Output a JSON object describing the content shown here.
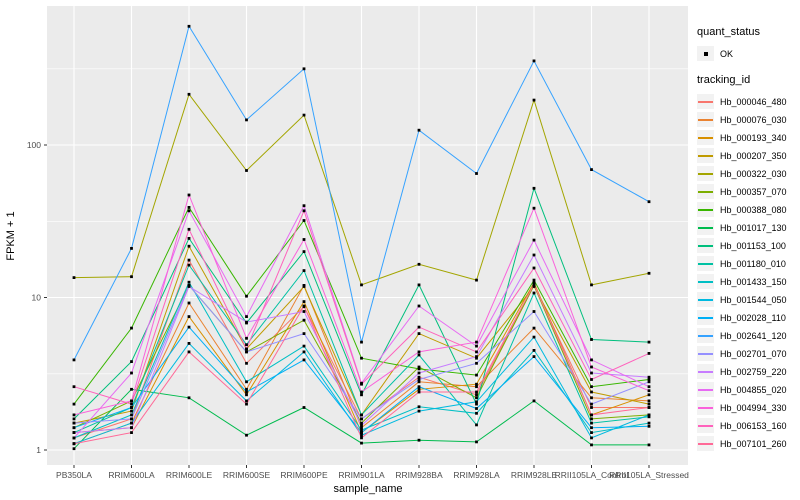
{
  "theme": {
    "panel_bg": "#EBEBEB",
    "grid_color": "#FFFFFF",
    "tick_label_color": "#4D4D4D",
    "axis_tick_color": "#333333",
    "point_color": "#000000",
    "legend_key_bg": "#F2F2F2"
  },
  "legend": {
    "quant_title": "quant_status",
    "ok_label": "OK",
    "tracking_title": "tracking_id"
  },
  "chart_data": {
    "type": "line",
    "title": "",
    "xlabel": "sample_name",
    "ylabel": "FPKM + 1",
    "y_scale": "log10",
    "ylim": [
      1,
      813
    ],
    "y_ticks": [
      1,
      10,
      100
    ],
    "y_minor_ticks": [
      3.162,
      31.62,
      316.2
    ],
    "grid": "on",
    "legend_position": "right",
    "point_marker": "small black square (quant_status OK)",
    "categories": [
      "PB350LA",
      "RRIM600LA",
      "RRIM600LE",
      "RRIM600SE",
      "RRIM600PE",
      "RRIM901LA",
      "RRIM928BA",
      "RRIM928LA",
      "RRIM928LE",
      "RRII105LA_Control",
      "RRII105LA_Stressed"
    ],
    "series": [
      {
        "name": "Hb_000046_480",
        "color": "#F8766D",
        "values": [
          1.2,
          1.6,
          17.6,
          3.7,
          8.7,
          1.6,
          3.0,
          2.3,
          12.0,
          1.9,
          1.9
        ]
      },
      {
        "name": "Hb_000076_030",
        "color": "#EA8331",
        "values": [
          1.1,
          1.5,
          9.2,
          2.5,
          12.0,
          1.4,
          2.8,
          2.6,
          6.3,
          2.2,
          2.1
        ]
      },
      {
        "name": "Hb_000193_340",
        "color": "#D89000",
        "values": [
          1.3,
          1.4,
          7.5,
          2.3,
          9.4,
          1.3,
          2.5,
          2.7,
          12.5,
          1.7,
          2.3
        ]
      },
      {
        "name": "Hb_000207_350",
        "color": "#C09B00",
        "values": [
          1.5,
          1.8,
          21.7,
          4.6,
          11.8,
          1.7,
          5.8,
          4.0,
          11.8,
          2.4,
          2.0
        ]
      },
      {
        "name": "Hb_000322_030",
        "color": "#A3A500",
        "values": [
          13.5,
          13.7,
          215,
          68,
          157,
          12.1,
          16.5,
          13.0,
          197,
          12.1,
          14.4
        ]
      },
      {
        "name": "Hb_000357_070",
        "color": "#7CAE00",
        "values": [
          1.4,
          2.1,
          12.0,
          4.4,
          7.1,
          1.5,
          3.5,
          2.2,
          12.0,
          1.6,
          1.7
        ]
      },
      {
        "name": "Hb_000388_080",
        "color": "#39B600",
        "values": [
          2.0,
          6.3,
          39,
          10.2,
          32,
          4.0,
          3.4,
          3.1,
          13.0,
          2.6,
          2.9
        ]
      },
      {
        "name": "Hb_001017_130",
        "color": "#00BB4E",
        "values": [
          1.02,
          2.5,
          2.2,
          1.25,
          1.9,
          1.11,
          1.16,
          1.13,
          2.1,
          1.08,
          1.08
        ]
      },
      {
        "name": "Hb_001153_100",
        "color": "#00BF7D",
        "values": [
          1.6,
          3.8,
          24.4,
          6.8,
          20,
          2.3,
          12.1,
          2.0,
          52,
          5.3,
          5.1
        ]
      },
      {
        "name": "Hb_001180_010",
        "color": "#00C1A3",
        "values": [
          1.3,
          1.9,
          16.3,
          4.9,
          15,
          1.7,
          4.2,
          1.46,
          10.7,
          1.5,
          1.65
        ]
      },
      {
        "name": "Hb_001433_150",
        "color": "#00BFC4",
        "values": [
          1.2,
          1.7,
          12.6,
          2.8,
          4.8,
          1.35,
          1.92,
          1.74,
          4.5,
          1.3,
          1.5
        ]
      },
      {
        "name": "Hb_001544_050",
        "color": "#00BAE0",
        "values": [
          1.1,
          1.5,
          5.0,
          2.1,
          4.4,
          1.25,
          1.8,
          2.07,
          5.5,
          1.2,
          1.7
        ]
      },
      {
        "name": "Hb_002028_110",
        "color": "#00B0F6",
        "values": [
          1.4,
          1.9,
          6.4,
          2.4,
          3.9,
          1.3,
          2.6,
          1.87,
          4.1,
          1.4,
          1.43
        ]
      },
      {
        "name": "Hb_002641_120",
        "color": "#35A2FF",
        "values": [
          3.9,
          21,
          600,
          146,
          316,
          5.1,
          125,
          65,
          356,
          69,
          42.5
        ]
      },
      {
        "name": "Hb_002701_070",
        "color": "#9590FF",
        "values": [
          1.5,
          1.6,
          12.0,
          4.4,
          5.8,
          1.6,
          2.9,
          3.7,
          8.1,
          2.0,
          2.8
        ]
      },
      {
        "name": "Hb_002759_220",
        "color": "#C77CFF",
        "values": [
          1.3,
          1.4,
          11.8,
          6.9,
          8.1,
          1.45,
          3.2,
          4.1,
          19,
          3.2,
          3.0
        ]
      },
      {
        "name": "Hb_004855_020",
        "color": "#E76BF3",
        "values": [
          1.2,
          3.2,
          37,
          7.5,
          40,
          2.74,
          8.8,
          4.8,
          23.8,
          3.9,
          2.6
        ]
      },
      {
        "name": "Hb_004994_330",
        "color": "#FA62DB",
        "values": [
          1.7,
          2.1,
          47,
          5.4,
          24,
          2.4,
          4.4,
          5.1,
          38.5,
          3.5,
          2.45
        ]
      },
      {
        "name": "Hb_006153_160",
        "color": "#FF62BC",
        "values": [
          2.6,
          2.0,
          28,
          4.6,
          37,
          2.7,
          6.4,
          4.4,
          15.6,
          2.9,
          4.3
        ]
      },
      {
        "name": "Hb_007101_260",
        "color": "#FF6A98",
        "values": [
          1.1,
          1.3,
          4.4,
          2.0,
          8.8,
          1.2,
          2.4,
          2.4,
          12.2,
          1.7,
          1.9
        ]
      }
    ]
  }
}
